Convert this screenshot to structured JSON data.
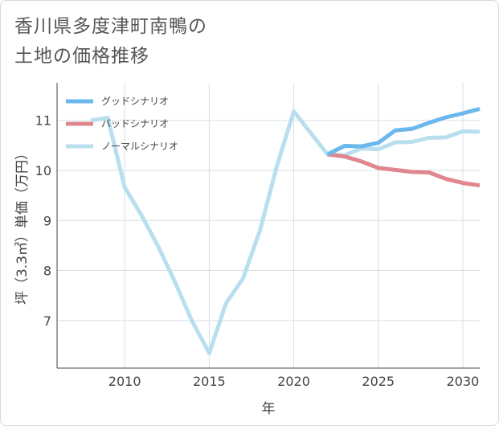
{
  "title_lines": [
    "香川県多度津町南鴨の",
    "土地の価格推移"
  ],
  "colors": {
    "good": "#6bb8ec",
    "bad": "#e0868f",
    "normal": "#b9dfee",
    "grid": "#d6e0e6",
    "axis": "#444444"
  },
  "chart_data": {
    "type": "line",
    "xlabel": "年",
    "ylabel": "坪（3.3㎡）単価（万円）",
    "xlim": [
      2006,
      2031
    ],
    "ylim": [
      6.05,
      11.75
    ],
    "xticks": [
      2010,
      2015,
      2020,
      2025,
      2030
    ],
    "yticks": [
      7,
      8,
      9,
      10,
      11
    ],
    "grid": true,
    "legend_position": "top-left",
    "series": [
      {
        "name": "グッドシナリオ",
        "color": "#6bb8ec",
        "x": [
          2022,
          2023,
          2024,
          2025,
          2026,
          2027,
          2028,
          2029,
          2030,
          2031
        ],
        "y": [
          10.32,
          10.49,
          10.48,
          10.55,
          10.8,
          10.83,
          10.95,
          11.06,
          11.14,
          11.23
        ]
      },
      {
        "name": "バッドシナリオ",
        "color": "#e0868f",
        "x": [
          2022,
          2023,
          2024,
          2025,
          2026,
          2027,
          2028,
          2029,
          2030,
          2031
        ],
        "y": [
          10.32,
          10.28,
          10.18,
          10.05,
          10.01,
          9.97,
          9.96,
          9.83,
          9.75,
          9.7
        ]
      },
      {
        "name": "ノーマルシナリオ",
        "color": "#b9dfee",
        "x": [
          2008,
          2009,
          2010,
          2011,
          2012,
          2013,
          2014,
          2015,
          2016,
          2017,
          2018,
          2019,
          2020,
          2021,
          2022,
          2023,
          2024,
          2025,
          2026,
          2027,
          2028,
          2029,
          2030,
          2031
        ],
        "y": [
          11.0,
          11.05,
          9.66,
          9.1,
          8.47,
          7.75,
          6.98,
          6.35,
          7.35,
          7.84,
          8.8,
          10.08,
          11.18,
          10.75,
          10.32,
          10.3,
          10.44,
          10.42,
          10.56,
          10.57,
          10.65,
          10.66,
          10.78,
          10.77
        ]
      }
    ]
  }
}
